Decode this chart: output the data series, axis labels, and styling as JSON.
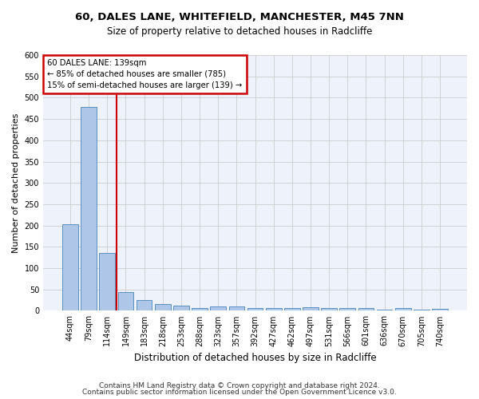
{
  "title1": "60, DALES LANE, WHITEFIELD, MANCHESTER, M45 7NN",
  "title2": "Size of property relative to detached houses in Radcliffe",
  "xlabel": "Distribution of detached houses by size in Radcliffe",
  "ylabel": "Number of detached properties",
  "categories": [
    "44sqm",
    "79sqm",
    "114sqm",
    "149sqm",
    "183sqm",
    "218sqm",
    "253sqm",
    "288sqm",
    "323sqm",
    "357sqm",
    "392sqm",
    "427sqm",
    "462sqm",
    "497sqm",
    "531sqm",
    "566sqm",
    "601sqm",
    "636sqm",
    "670sqm",
    "705sqm",
    "740sqm"
  ],
  "values": [
    203,
    478,
    135,
    44,
    25,
    15,
    12,
    6,
    10,
    10,
    6,
    6,
    6,
    8,
    6,
    6,
    6,
    3,
    6,
    3,
    5
  ],
  "bar_color": "#aec6e8",
  "bar_edge_color": "#5a8fbf",
  "grid_color": "#cccccc",
  "vline_x": 2.5,
  "vline_color": "#cc0000",
  "annotation_line1": "60 DALES LANE: 139sqm",
  "annotation_line2": "← 85% of detached houses are smaller (785)",
  "annotation_line3": "15% of semi-detached houses are larger (139) →",
  "annotation_box_color": "#cc0000",
  "footer1": "Contains HM Land Registry data © Crown copyright and database right 2024.",
  "footer2": "Contains public sector information licensed under the Open Government Licence v3.0.",
  "ylim": [
    0,
    600
  ],
  "yticks": [
    0,
    50,
    100,
    150,
    200,
    250,
    300,
    350,
    400,
    450,
    500,
    550,
    600
  ],
  "background_color": "#eef2fa",
  "title1_fontsize": 9.5,
  "title2_fontsize": 8.5,
  "ylabel_fontsize": 8,
  "xlabel_fontsize": 8.5,
  "tick_fontsize": 7,
  "footer_fontsize": 6.5
}
